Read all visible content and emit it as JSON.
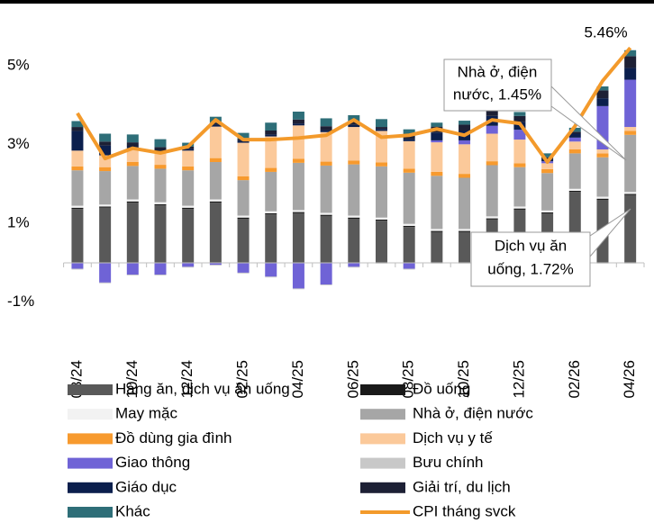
{
  "chart_data": {
    "type": "bar",
    "categories": [
      "08/24",
      null,
      "10/24",
      null,
      "12/24",
      null,
      "02/25",
      null,
      "04/25",
      null,
      "06/25",
      null,
      "08/25",
      null,
      "10/25",
      null,
      "12/25",
      null,
      "02/26",
      null,
      "04/26"
    ],
    "ylim": [
      -1,
      6
    ],
    "yticks": [
      {
        "value": 5,
        "label": "5%"
      },
      {
        "value": 3,
        "label": "3%"
      },
      {
        "value": 1,
        "label": "1%"
      },
      {
        "value": -1,
        "label": "-1%"
      }
    ],
    "stacked": true,
    "series": [
      {
        "name": "Hàng ăn, dịch vụ ăn uống",
        "color": "#595959",
        "values": [
          1.37,
          1.4,
          1.53,
          1.46,
          1.37,
          1.53,
          1.12,
          1.23,
          1.26,
          1.19,
          1.12,
          1.07,
          0.91,
          0.78,
          0.78,
          1.1,
          1.35,
          1.25,
          1.8,
          1.6,
          1.72
        ]
      },
      {
        "name": "Đồ uống",
        "color": "#1a1a1a",
        "values": [
          0.03,
          0.03,
          0.03,
          0.03,
          0.03,
          0.03,
          0.03,
          0.03,
          0.03,
          0.03,
          0.03,
          0.03,
          0.03,
          0.03,
          0.03,
          0.03,
          0.03,
          0.03,
          0.03,
          0.03,
          0.03
        ]
      },
      {
        "name": "May mặc",
        "color": "#f2f2f2",
        "values": [
          0.05,
          0.05,
          0.05,
          0.05,
          0.05,
          0.05,
          0.05,
          0.05,
          0.05,
          0.05,
          0.05,
          0.05,
          0.05,
          0.05,
          0.05,
          0.05,
          0.05,
          0.05,
          0.05,
          0.05,
          0.05
        ]
      },
      {
        "name": "Nhà ở, điện nước",
        "color": "#a6a6a6",
        "values": [
          0.9,
          0.85,
          0.85,
          0.85,
          0.9,
          0.95,
          0.9,
          1.0,
          1.2,
          1.2,
          1.3,
          1.3,
          1.3,
          1.35,
          1.3,
          1.3,
          1.0,
          0.95,
          0.9,
          1.0,
          1.45
        ]
      },
      {
        "name": "Đồ dùng gia đình",
        "color": "#f79a2e",
        "values": [
          0.1,
          0.1,
          0.1,
          0.1,
          0.1,
          0.1,
          0.1,
          0.1,
          0.1,
          0.1,
          0.1,
          0.1,
          0.1,
          0.1,
          0.1,
          0.1,
          0.1,
          0.1,
          0.1,
          0.1,
          0.1
        ]
      },
      {
        "name": "Dịch vụ y tế",
        "color": "#fbc99a",
        "values": [
          0.4,
          0.3,
          0.35,
          0.3,
          0.4,
          0.8,
          0.85,
          0.8,
          0.85,
          0.75,
          0.85,
          0.8,
          0.7,
          0.75,
          0.75,
          0.7,
          0.6,
          0.15,
          0.2,
          0.1,
          0.1
        ]
      },
      {
        "name": "Giao thông",
        "color": "#6f63d6",
        "values": [
          -0.15,
          -0.5,
          -0.3,
          -0.3,
          -0.1,
          -0.05,
          -0.25,
          -0.35,
          -0.65,
          -0.55,
          -0.1,
          0,
          -0.15,
          0.05,
          0.1,
          0.2,
          0.25,
          0.05,
          0.1,
          1.1,
          1.2
        ]
      },
      {
        "name": "Bưu chính",
        "color": "#c8c8c8",
        "values": [
          -0.02,
          -0.02,
          -0.02,
          -0.02,
          -0.02,
          -0.02,
          -0.02,
          -0.02,
          -0.02,
          -0.02,
          -0.02,
          -0.02,
          -0.02,
          -0.02,
          -0.02,
          -0.02,
          -0.02,
          -0.02,
          -0.02,
          -0.02,
          -0.02
        ]
      },
      {
        "name": "Giáo dục",
        "color": "#0b1f4d",
        "values": [
          0.5,
          0.25,
          0.05,
          0.05,
          0.05,
          0.05,
          0.05,
          0.05,
          0.05,
          0.05,
          0.05,
          0.05,
          0.05,
          0.2,
          0.25,
          0.25,
          0.2,
          0.05,
          0.1,
          0.2,
          0.3
        ]
      },
      {
        "name": "Giải trí, du lịch",
        "color": "#1d2035",
        "values": [
          0.1,
          0.1,
          0.1,
          0.1,
          0.05,
          0.05,
          0.05,
          0.1,
          0.1,
          0.1,
          0.1,
          0.05,
          0.1,
          0.15,
          0.15,
          0.2,
          0.15,
          0.05,
          0.05,
          0.2,
          0.3
        ]
      },
      {
        "name": "Khác",
        "color": "#2e6e78",
        "values": [
          0.15,
          0.2,
          0.2,
          0.2,
          0.1,
          0.15,
          0.15,
          0.2,
          0.2,
          0.2,
          0.15,
          0.2,
          0.15,
          0.1,
          0.1,
          0.1,
          0.1,
          0.1,
          0.1,
          0.1,
          0.15
        ]
      },
      {
        "name": "CPI tháng svck",
        "color": "#f39a2b",
        "type": "line",
        "values": [
          3.8,
          2.65,
          2.91,
          2.79,
          2.95,
          3.63,
          3.13,
          3.13,
          3.17,
          3.24,
          3.63,
          3.19,
          3.24,
          3.4,
          3.24,
          3.63,
          3.54,
          2.56,
          3.47,
          4.62,
          5.46
        ],
        "value_labels": [
          null,
          null,
          null,
          null,
          null,
          null,
          null,
          null,
          null,
          null,
          null,
          null,
          null,
          null,
          null,
          null,
          null,
          null,
          null,
          null,
          "5.46%"
        ]
      }
    ],
    "annotations": [
      {
        "lines": [
          "Nhà ở, điện",
          "nước, 1.45%"
        ]
      },
      {
        "lines": [
          "Dịch vụ ăn",
          "uống, 1.72%"
        ]
      }
    ]
  }
}
